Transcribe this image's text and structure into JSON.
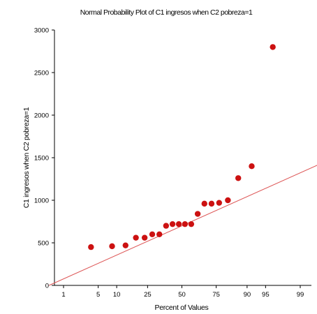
{
  "chart_data": {
    "type": "scatter",
    "title": "Normal Probability Plot of C1 ingresos when C2 pobreza=1",
    "xlabel": "Percent of Values",
    "ylabel": "C1 ingresos when C2 pobreza=1",
    "xscale": "normal-probability",
    "x_ticks": [
      1,
      5,
      10,
      25,
      50,
      75,
      90,
      95,
      99
    ],
    "x_tick_labels": [
      "1",
      "5",
      "10",
      "25",
      "50",
      "75",
      "90",
      "95",
      "99"
    ],
    "ylim": [
      0,
      3000
    ],
    "y_ticks": [
      0,
      500,
      1000,
      1500,
      2000,
      2500,
      3000
    ],
    "y_tick_labels": [
      "0",
      "500",
      "1000",
      "1500",
      "2000",
      "2500",
      "3000"
    ],
    "grid": false,
    "colors": {
      "points": "#cc1111",
      "fit_line": "#dd5555",
      "axis": "#000000"
    },
    "series": [
      {
        "kind": "points",
        "x": [
          3.7,
          8.5,
          13.4,
          18.3,
          23.2,
          28.0,
          32.9,
          37.8,
          42.7,
          47.6,
          52.4,
          57.3,
          62.2,
          67.1,
          72.0,
          76.8,
          81.7,
          86.6,
          91.5,
          96.3
        ],
        "y": [
          450,
          460,
          470,
          560,
          560,
          600,
          600,
          700,
          720,
          720,
          720,
          720,
          840,
          960,
          960,
          970,
          1000,
          1260,
          1400,
          2800
        ]
      },
      {
        "kind": "fit_line",
        "x": [
          0.45,
          99.8
        ],
        "y": [
          0,
          1470
        ]
      }
    ]
  }
}
